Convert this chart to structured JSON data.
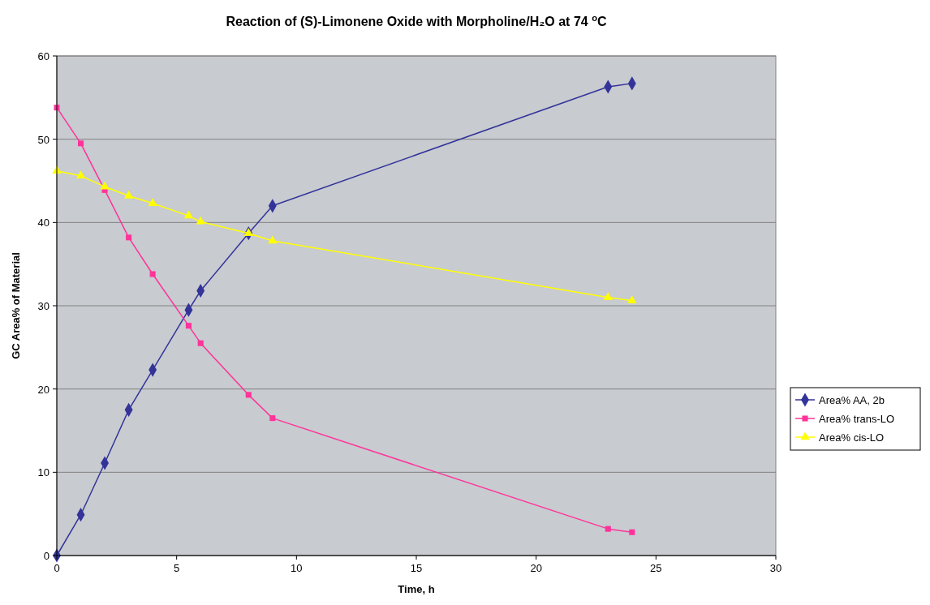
{
  "chart_data": {
    "type": "line",
    "title": "Reaction of (S)-Limonene Oxide with Morpholine/H₂O at 74 $^{o}$C",
    "xlabel": "Time, h",
    "ylabel": "GC Area% of Material",
    "x": [
      0,
      1,
      2,
      3,
      4,
      5.5,
      6,
      8,
      9,
      23,
      24
    ],
    "series": [
      {
        "name": "Area% AA, 2b",
        "color": "#333399",
        "marker": "diamond",
        "values": [
          0,
          4.9,
          11.1,
          17.5,
          22.3,
          29.5,
          31.8,
          38.7,
          42,
          56.3,
          56.7
        ]
      },
      {
        "name": "Area% trans-LO",
        "color": "#ff3399",
        "marker": "square",
        "values": [
          53.8,
          49.5,
          43.9,
          38.2,
          33.8,
          27.6,
          25.5,
          19.3,
          16.5,
          3.2,
          2.8
        ]
      },
      {
        "name": "Area% cis-LO",
        "color": "#ffff00",
        "marker": "triangle",
        "values": [
          46.2,
          45.6,
          44.3,
          43.2,
          42.3,
          40.8,
          40.1,
          38.7,
          37.8,
          31,
          30.6
        ]
      }
    ],
    "xlim": [
      0,
      30
    ],
    "xticks": [
      0,
      5,
      10,
      15,
      20,
      25,
      30
    ],
    "ylim": [
      0,
      60
    ],
    "yticks": [
      0,
      10,
      20,
      30,
      40,
      50,
      60
    ],
    "grid": "y",
    "legend": "right",
    "line_style": "solid"
  }
}
